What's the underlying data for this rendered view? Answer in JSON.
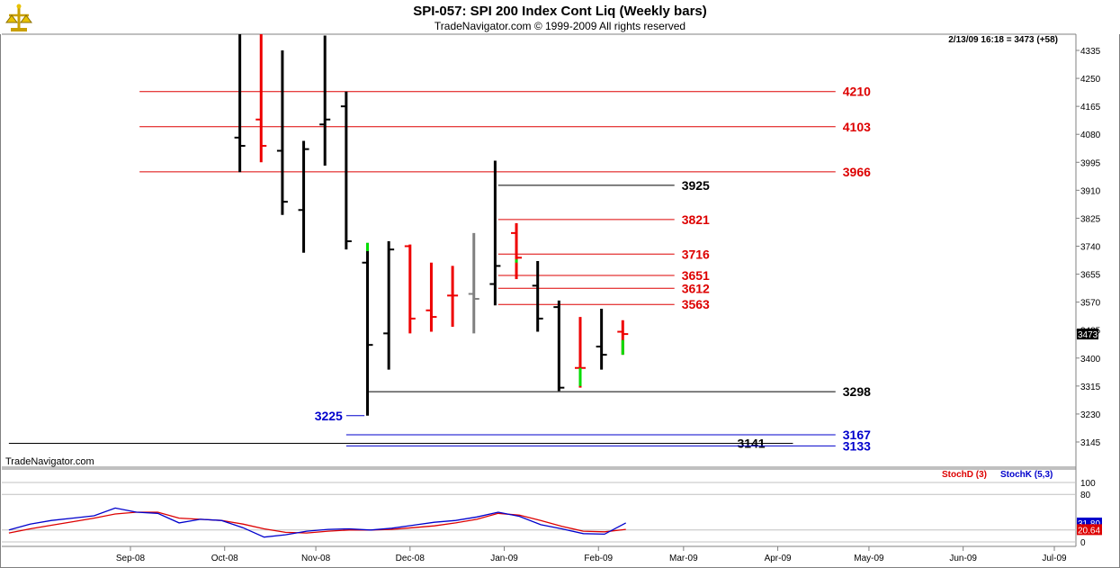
{
  "header": {
    "title": "SPI-057:  SPI 200 Index Cont Liq  (Weekly bars)",
    "subtitle": "TradeNavigator.com © 1999-2009 All rights reserved",
    "quote_info": "2/13/09 16:18 = 3473 (+58)",
    "watermark": "TradeNavigator.com",
    "logo": "trade-navigator-logo-icon"
  },
  "colors": {
    "up_bar": "#00dd00",
    "down_bar": "#ee0000",
    "neutral_bar": "#000000",
    "doji_bar": "#808080",
    "red_level": "#dd0000",
    "blue_level": "#0000cc",
    "black_level": "#000000",
    "stochD": "#dd0000",
    "stochK": "#0000cc"
  },
  "chart_data": [
    {
      "type": "ohlc",
      "title": "SPI 200 Index Cont Liq (Weekly bars)",
      "y_ticks": [
        4335,
        4250,
        4165,
        4080,
        3995,
        3910,
        3825,
        3740,
        3655,
        3570,
        3485,
        3400,
        3315,
        3230,
        3145
      ],
      "ylim": [
        3100,
        4390
      ],
      "last_price_tag": "3473",
      "x_ticks": [
        "Sep-08",
        "Oct-08",
        "Nov-08",
        "Dec-08",
        "Jan-09",
        "Feb-09",
        "Mar-09",
        "Apr-09",
        "May-09",
        "Jun-09",
        "Jul-09"
      ],
      "x_tick_days": [
        0,
        31,
        61,
        92,
        123,
        154,
        182,
        213,
        243,
        274,
        304
      ],
      "xlim_days": [
        -40,
        333
      ],
      "bars": [
        {
          "day": 36,
          "o": 4070,
          "h": 4400,
          "l": 3965,
          "c": 4045,
          "color": "black"
        },
        {
          "day": 43,
          "o": 4125,
          "h": 4400,
          "l": 3995,
          "c": 4045,
          "color": "red"
        },
        {
          "day": 50,
          "o": 4030,
          "h": 4335,
          "l": 3835,
          "c": 3875,
          "color": "black"
        },
        {
          "day": 57,
          "o": 3850,
          "h": 4060,
          "l": 3720,
          "c": 4035,
          "color": "black"
        },
        {
          "day": 64,
          "o": 4110,
          "h": 4380,
          "l": 3985,
          "c": 4125,
          "color": "black"
        },
        {
          "day": 71,
          "o": 4165,
          "h": 4210,
          "l": 3730,
          "c": 3755,
          "color": "black"
        },
        {
          "day": 78,
          "o": 3690,
          "h": 3750,
          "l": 3225,
          "c": 3440,
          "color": "black"
        },
        {
          "day": 85,
          "o": 3475,
          "h": 3755,
          "l": 3365,
          "c": 3730,
          "color": "black"
        },
        {
          "day": 92,
          "o": 3740,
          "h": 3745,
          "l": 3475,
          "c": 3520,
          "color": "red"
        },
        {
          "day": 99,
          "o": 3545,
          "h": 3690,
          "l": 3480,
          "c": 3525,
          "color": "red"
        },
        {
          "day": 106,
          "o": 3590,
          "h": 3680,
          "l": 3495,
          "c": 3590,
          "color": "red"
        },
        {
          "day": 113,
          "o": 3595,
          "h": 3780,
          "l": 3475,
          "c": 3580,
          "color": "gray"
        },
        {
          "day": 120,
          "o": 3625,
          "h": 4000,
          "l": 3560,
          "c": 3680,
          "color": "black"
        },
        {
          "day": 127,
          "o": 3780,
          "h": 3810,
          "l": 3640,
          "c": 3705,
          "color": "red"
        },
        {
          "day": 134,
          "o": 3620,
          "h": 3695,
          "l": 3480,
          "c": 3520,
          "color": "black"
        },
        {
          "day": 141,
          "o": 3555,
          "h": 3575,
          "l": 3300,
          "c": 3310,
          "color": "black"
        },
        {
          "day": 148,
          "o": 3370,
          "h": 3525,
          "l": 3310,
          "c": 3370,
          "color": "red"
        },
        {
          "day": 155,
          "o": 3435,
          "h": 3550,
          "l": 3365,
          "c": 3410,
          "color": "black"
        },
        {
          "day": 162,
          "o": 3480,
          "h": 3515,
          "l": 3410,
          "c": 3473,
          "color": "red"
        }
      ],
      "levels": [
        {
          "label": "4210",
          "value": 4210,
          "color": "red",
          "start_day": 3,
          "end_day": 232
        },
        {
          "label": "4103",
          "value": 4103,
          "color": "red",
          "start_day": 3,
          "end_day": 232
        },
        {
          "label": "3966",
          "value": 3966,
          "color": "red",
          "start_day": 3,
          "end_day": 232
        },
        {
          "label": "3925",
          "value": 3925,
          "color": "black",
          "start_day": 121,
          "end_day": 179
        },
        {
          "label": "3821",
          "value": 3821,
          "color": "red",
          "start_day": 121,
          "end_day": 179
        },
        {
          "label": "3716",
          "value": 3716,
          "color": "red",
          "start_day": 121,
          "end_day": 179
        },
        {
          "label": "3651",
          "value": 3651,
          "color": "red",
          "start_day": 121,
          "end_day": 179
        },
        {
          "label": "3612",
          "value": 3612,
          "color": "red",
          "start_day": 121,
          "end_day": 179
        },
        {
          "label": "3563",
          "value": 3563,
          "color": "red",
          "start_day": 121,
          "end_day": 179
        },
        {
          "label": "3298",
          "value": 3298,
          "color": "black",
          "start_day": 78,
          "end_day": 232
        },
        {
          "label": "3225",
          "value": 3225,
          "color": "blue",
          "start_day": 71,
          "end_day": 77,
          "label_side": "left"
        },
        {
          "label": "3167",
          "value": 3167,
          "color": "blue",
          "start_day": 71,
          "end_day": 232
        },
        {
          "label": "3141",
          "value": 3141,
          "color": "black",
          "start_day": -40,
          "end_day": 218,
          "label_offset": -70
        },
        {
          "label": "3133",
          "value": 3133,
          "color": "blue",
          "start_day": 71,
          "end_day": 232
        }
      ]
    },
    {
      "type": "line",
      "title": "Stochastic",
      "legend": [
        "StochD (3)",
        "StochK (5,3)"
      ],
      "y_ticks": [
        100,
        80,
        20,
        0
      ],
      "ylim": [
        0,
        100
      ],
      "value_tags": [
        "31.80",
        "20.64"
      ],
      "series": [
        {
          "name": "StochD (3)",
          "color": "red",
          "x": [
            -40,
            -33,
            -26,
            -19,
            -12,
            -5,
            2,
            9,
            16,
            23,
            30,
            37,
            44,
            51,
            58,
            65,
            72,
            79,
            86,
            93,
            100,
            107,
            114,
            121,
            128,
            135,
            142,
            149,
            156,
            163
          ],
          "values": [
            15,
            22,
            28,
            34,
            40,
            47,
            50,
            50,
            40,
            38,
            36,
            30,
            22,
            16,
            15,
            18,
            20,
            20,
            21,
            24,
            27,
            32,
            38,
            48,
            45,
            36,
            26,
            18,
            17,
            21
          ]
        },
        {
          "name": "StochK (5,3)",
          "color": "blue",
          "x": [
            -40,
            -33,
            -26,
            -19,
            -12,
            -5,
            2,
            9,
            16,
            23,
            30,
            37,
            44,
            51,
            58,
            65,
            72,
            79,
            86,
            93,
            100,
            107,
            114,
            121,
            128,
            135,
            142,
            149,
            156,
            163
          ],
          "values": [
            20,
            30,
            36,
            40,
            44,
            57,
            50,
            48,
            32,
            38,
            36,
            24,
            8,
            12,
            18,
            21,
            22,
            20,
            23,
            28,
            33,
            36,
            42,
            50,
            43,
            29,
            22,
            14,
            13,
            32
          ]
        }
      ]
    }
  ]
}
